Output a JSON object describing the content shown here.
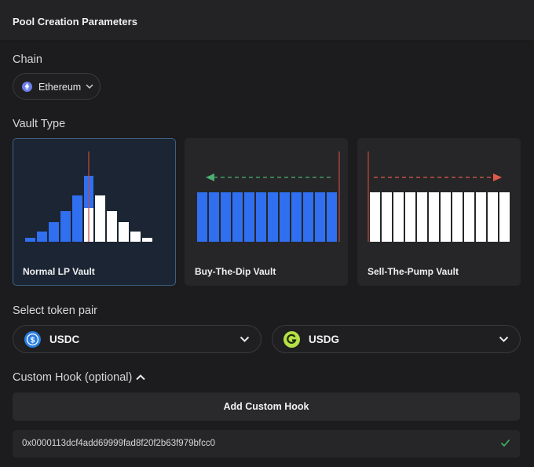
{
  "header": {
    "title": "Pool Creation Parameters"
  },
  "chain": {
    "label": "Chain",
    "selected": "Ethereum",
    "icon": "ethereum-icon",
    "icon_color": "#6b7fe8"
  },
  "vault_type": {
    "label": "Vault Type",
    "selected_index": 0,
    "options": [
      {
        "label": "Normal LP Vault",
        "selected": true
      },
      {
        "label": "Buy-The-Dip Vault",
        "selected": false
      },
      {
        "label": "Sell-The-Pump Vault",
        "selected": false
      }
    ],
    "colors": {
      "blue": "#2f6ff0",
      "white": "#ffffff",
      "price_line": "#c8483a",
      "buy_arrow": "#4caf72",
      "sell_arrow": "#e05a4a",
      "selected_border": "#3d5f86"
    }
  },
  "token_pair": {
    "label": "Select token pair",
    "token_a": {
      "symbol": "USDC",
      "icon": "usdc-icon",
      "color": "#2a7de0"
    },
    "token_b": {
      "symbol": "USDG",
      "icon": "usdg-icon",
      "color": "#b6e045"
    }
  },
  "custom_hook": {
    "label": "Custom Hook (optional)",
    "expanded": true,
    "add_button": "Add Custom Hook",
    "address": "0x0000113dcf4add69999fad8f20f2b63f979bfcc0",
    "valid": true
  }
}
